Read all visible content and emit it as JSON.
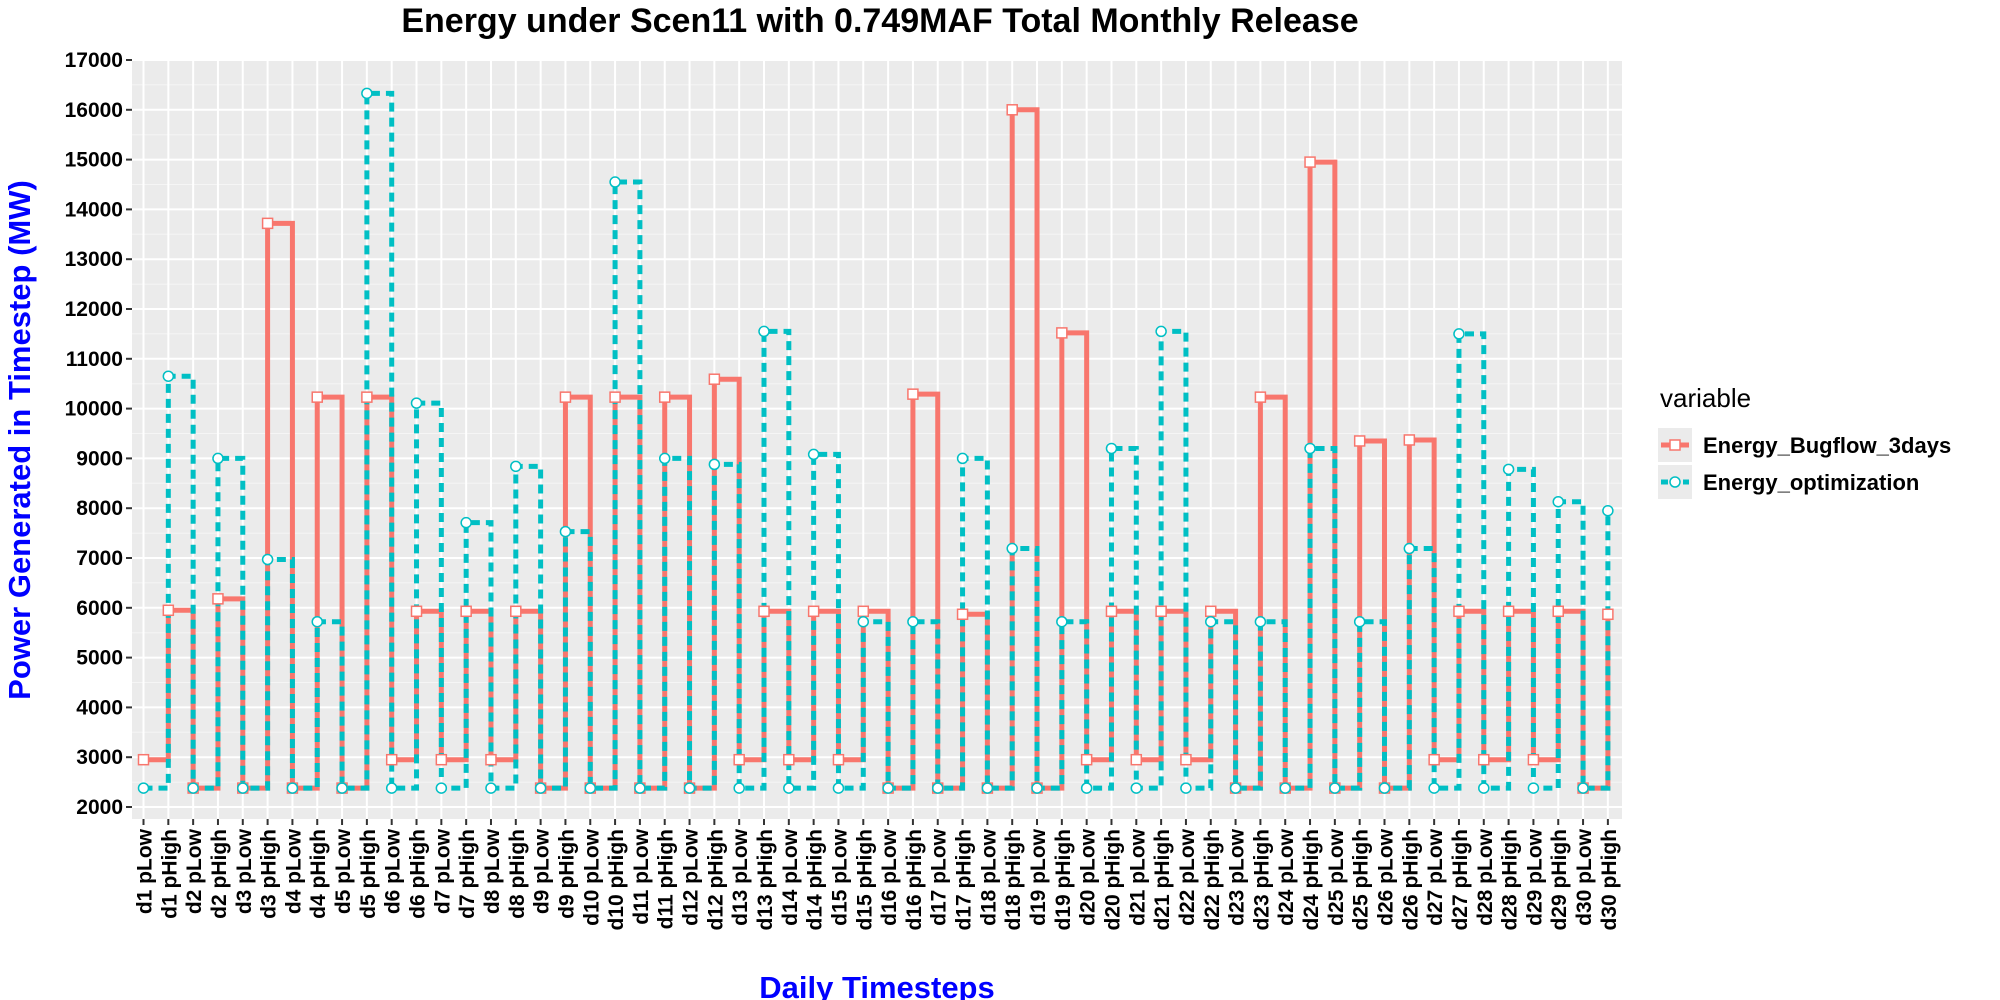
{
  "chart_data": {
    "type": "line",
    "subtype": "step",
    "title": "Energy under Scen11 with 0.749MAF Total Monthly Release",
    "xlabel": "Daily Timesteps",
    "ylabel": "Power Generated in Timestep (MW)",
    "ylim": [
      2000,
      17000
    ],
    "yticks": [
      2000,
      3000,
      4000,
      5000,
      6000,
      7000,
      8000,
      9000,
      10000,
      11000,
      12000,
      13000,
      14000,
      15000,
      16000,
      17000
    ],
    "grid": true,
    "legend": {
      "title": "variable",
      "position": "right"
    },
    "categories": [
      "d1 pLow",
      "d1 pHigh",
      "d2 pLow",
      "d2 pHigh",
      "d3 pLow",
      "d3 pHigh",
      "d4 pLow",
      "d4 pHigh",
      "d5 pLow",
      "d5 pHigh",
      "d6 pLow",
      "d6 pHigh",
      "d7 pLow",
      "d7 pHigh",
      "d8 pLow",
      "d8 pHigh",
      "d9 pLow",
      "d9 pHigh",
      "d10 pLow",
      "d10 pHigh",
      "d11 pLow",
      "d11 pHigh",
      "d12 pLow",
      "d12 pHigh",
      "d13 pLow",
      "d13 pHigh",
      "d14 pLow",
      "d14 pHigh",
      "d15 pLow",
      "d15 pHigh",
      "d16 pLow",
      "d16 pHigh",
      "d17 pLow",
      "d17 pHigh",
      "d18 pLow",
      "d18 pHigh",
      "d19 pLow",
      "d19 pHigh",
      "d20 pLow",
      "d20 pHigh",
      "d21 pLow",
      "d21 pHigh",
      "d22 pLow",
      "d22 pHigh",
      "d23 pLow",
      "d23 pHigh",
      "d24 pLow",
      "d24 pHigh",
      "d25 pLow",
      "d25 pHigh",
      "d26 pLow",
      "d26 pHigh",
      "d27 pLow",
      "d27 pHigh",
      "d28 pLow",
      "d28 pHigh",
      "d29 pLow",
      "d29 pHigh",
      "d30 pLow",
      "d30 pHigh"
    ],
    "series": [
      {
        "name": "Energy_Bugflow_3days",
        "color": "#F8766D",
        "linetype": "solid",
        "marker": "square",
        "values": [
          2950,
          5950,
          2380,
          6180,
          2380,
          13720,
          2380,
          10230,
          2380,
          10230,
          2950,
          5930,
          2950,
          5930,
          2950,
          5930,
          2380,
          10230,
          2380,
          10230,
          2380,
          10230,
          2380,
          10590,
          2950,
          5930,
          2950,
          5930,
          2950,
          5930,
          2380,
          10290,
          2380,
          5870,
          2380,
          16000,
          2380,
          11520,
          2950,
          5930,
          2950,
          5930,
          2950,
          5930,
          2380,
          10230,
          2380,
          14950,
          2380,
          9350,
          2380,
          9370,
          2950,
          5930,
          2950,
          5930,
          2950,
          5930,
          2380,
          5870
        ]
      },
      {
        "name": "Energy_optimization",
        "color": "#00BFC4",
        "linetype": "dashed",
        "marker": "circle",
        "values": [
          2380,
          10650,
          2380,
          9000,
          2380,
          6970,
          2380,
          5720,
          2380,
          16330,
          2380,
          10110,
          2380,
          7710,
          2380,
          8840,
          2380,
          7530,
          2380,
          14550,
          2380,
          9000,
          2380,
          8880,
          2380,
          11550,
          2380,
          9080,
          2380,
          5720,
          2380,
          5720,
          2380,
          9000,
          2380,
          7190,
          2380,
          5720,
          2380,
          9200,
          2380,
          11550,
          2380,
          5720,
          2380,
          5720,
          2380,
          9200,
          2380,
          5720,
          2380,
          7190,
          2380,
          11500,
          2380,
          8780,
          2380,
          8130,
          2380,
          7950
        ]
      }
    ]
  }
}
